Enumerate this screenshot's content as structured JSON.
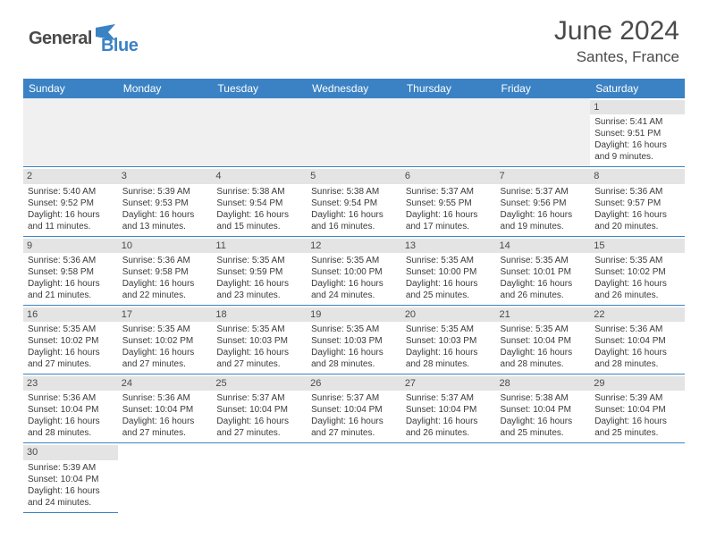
{
  "brand": {
    "part1": "General",
    "part2": "Blue"
  },
  "title": "June 2024",
  "location": "Santes, France",
  "colors": {
    "header_bg": "#3b82c4",
    "header_text": "#ffffff",
    "daynum_bg": "#e4e4e4",
    "border": "#3b82c4",
    "logo_gray": "#4a4a4a",
    "logo_blue": "#3b82c4"
  },
  "day_headers": [
    "Sunday",
    "Monday",
    "Tuesday",
    "Wednesday",
    "Thursday",
    "Friday",
    "Saturday"
  ],
  "first_weekday_index": 6,
  "days": [
    {
      "n": 1,
      "sunrise": "5:41 AM",
      "sunset": "9:51 PM",
      "daylight": "16 hours and 9 minutes."
    },
    {
      "n": 2,
      "sunrise": "5:40 AM",
      "sunset": "9:52 PM",
      "daylight": "16 hours and 11 minutes."
    },
    {
      "n": 3,
      "sunrise": "5:39 AM",
      "sunset": "9:53 PM",
      "daylight": "16 hours and 13 minutes."
    },
    {
      "n": 4,
      "sunrise": "5:38 AM",
      "sunset": "9:54 PM",
      "daylight": "16 hours and 15 minutes."
    },
    {
      "n": 5,
      "sunrise": "5:38 AM",
      "sunset": "9:54 PM",
      "daylight": "16 hours and 16 minutes."
    },
    {
      "n": 6,
      "sunrise": "5:37 AM",
      "sunset": "9:55 PM",
      "daylight": "16 hours and 17 minutes."
    },
    {
      "n": 7,
      "sunrise": "5:37 AM",
      "sunset": "9:56 PM",
      "daylight": "16 hours and 19 minutes."
    },
    {
      "n": 8,
      "sunrise": "5:36 AM",
      "sunset": "9:57 PM",
      "daylight": "16 hours and 20 minutes."
    },
    {
      "n": 9,
      "sunrise": "5:36 AM",
      "sunset": "9:58 PM",
      "daylight": "16 hours and 21 minutes."
    },
    {
      "n": 10,
      "sunrise": "5:36 AM",
      "sunset": "9:58 PM",
      "daylight": "16 hours and 22 minutes."
    },
    {
      "n": 11,
      "sunrise": "5:35 AM",
      "sunset": "9:59 PM",
      "daylight": "16 hours and 23 minutes."
    },
    {
      "n": 12,
      "sunrise": "5:35 AM",
      "sunset": "10:00 PM",
      "daylight": "16 hours and 24 minutes."
    },
    {
      "n": 13,
      "sunrise": "5:35 AM",
      "sunset": "10:00 PM",
      "daylight": "16 hours and 25 minutes."
    },
    {
      "n": 14,
      "sunrise": "5:35 AM",
      "sunset": "10:01 PM",
      "daylight": "16 hours and 26 minutes."
    },
    {
      "n": 15,
      "sunrise": "5:35 AM",
      "sunset": "10:02 PM",
      "daylight": "16 hours and 26 minutes."
    },
    {
      "n": 16,
      "sunrise": "5:35 AM",
      "sunset": "10:02 PM",
      "daylight": "16 hours and 27 minutes."
    },
    {
      "n": 17,
      "sunrise": "5:35 AM",
      "sunset": "10:02 PM",
      "daylight": "16 hours and 27 minutes."
    },
    {
      "n": 18,
      "sunrise": "5:35 AM",
      "sunset": "10:03 PM",
      "daylight": "16 hours and 27 minutes."
    },
    {
      "n": 19,
      "sunrise": "5:35 AM",
      "sunset": "10:03 PM",
      "daylight": "16 hours and 28 minutes."
    },
    {
      "n": 20,
      "sunrise": "5:35 AM",
      "sunset": "10:03 PM",
      "daylight": "16 hours and 28 minutes."
    },
    {
      "n": 21,
      "sunrise": "5:35 AM",
      "sunset": "10:04 PM",
      "daylight": "16 hours and 28 minutes."
    },
    {
      "n": 22,
      "sunrise": "5:36 AM",
      "sunset": "10:04 PM",
      "daylight": "16 hours and 28 minutes."
    },
    {
      "n": 23,
      "sunrise": "5:36 AM",
      "sunset": "10:04 PM",
      "daylight": "16 hours and 28 minutes."
    },
    {
      "n": 24,
      "sunrise": "5:36 AM",
      "sunset": "10:04 PM",
      "daylight": "16 hours and 27 minutes."
    },
    {
      "n": 25,
      "sunrise": "5:37 AM",
      "sunset": "10:04 PM",
      "daylight": "16 hours and 27 minutes."
    },
    {
      "n": 26,
      "sunrise": "5:37 AM",
      "sunset": "10:04 PM",
      "daylight": "16 hours and 27 minutes."
    },
    {
      "n": 27,
      "sunrise": "5:37 AM",
      "sunset": "10:04 PM",
      "daylight": "16 hours and 26 minutes."
    },
    {
      "n": 28,
      "sunrise": "5:38 AM",
      "sunset": "10:04 PM",
      "daylight": "16 hours and 25 minutes."
    },
    {
      "n": 29,
      "sunrise": "5:39 AM",
      "sunset": "10:04 PM",
      "daylight": "16 hours and 25 minutes."
    },
    {
      "n": 30,
      "sunrise": "5:39 AM",
      "sunset": "10:04 PM",
      "daylight": "16 hours and 24 minutes."
    }
  ],
  "labels": {
    "sunrise": "Sunrise:",
    "sunset": "Sunset:",
    "daylight": "Daylight:"
  }
}
